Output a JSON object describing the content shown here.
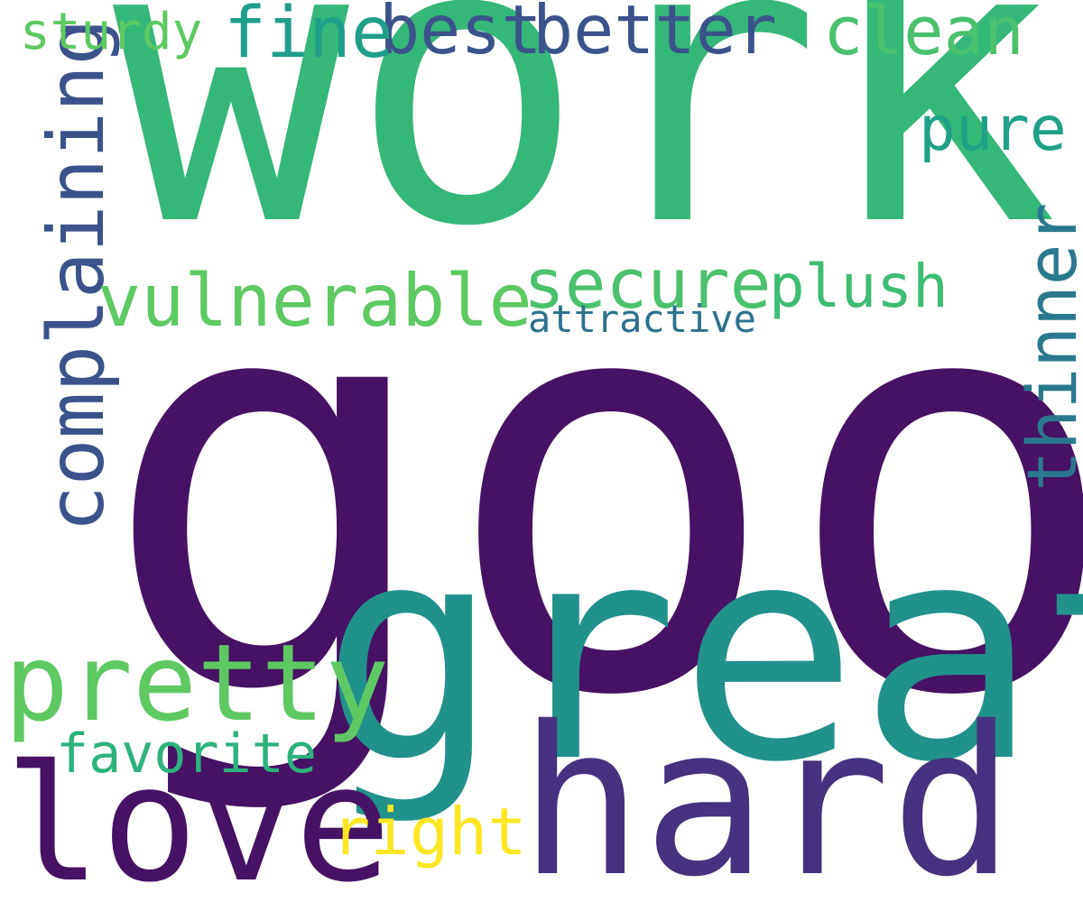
{
  "words": {
    "good": {
      "text": "good",
      "color": "#471164"
    },
    "work": {
      "text": "work",
      "color": "#35b779"
    },
    "great": {
      "text": "great",
      "color": "#21918c"
    },
    "hard": {
      "text": "hard",
      "color": "#46327e"
    },
    "love": {
      "text": "love",
      "color": "#471164"
    },
    "pretty": {
      "text": "pretty",
      "color": "#5ec962"
    },
    "complaining": {
      "text": "complaining",
      "color": "#3b528b"
    },
    "vulnerable": {
      "text": "vulnerable",
      "color": "#5ec962"
    },
    "secure": {
      "text": "secure",
      "color": "#4ac16d"
    },
    "thinner": {
      "text": "thinner",
      "color": "#2a788e"
    },
    "better": {
      "text": "better",
      "color": "#3b528b"
    },
    "best": {
      "text": "best",
      "color": "#3b528b"
    },
    "fine": {
      "text": "fine",
      "color": "#1f9e89"
    },
    "clean": {
      "text": "clean",
      "color": "#4ac16d"
    },
    "pure": {
      "text": "pure",
      "color": "#1fa187"
    },
    "plush": {
      "text": "plush",
      "color": "#3dbc74"
    },
    "right": {
      "text": "right",
      "color": "#fde725"
    },
    "favorite": {
      "text": "favorite",
      "color": "#2db27d"
    },
    "sturdy": {
      "text": "sturdy",
      "color": "#5ec962"
    },
    "attractive": {
      "text": "attractive",
      "color": "#2c728e"
    }
  }
}
